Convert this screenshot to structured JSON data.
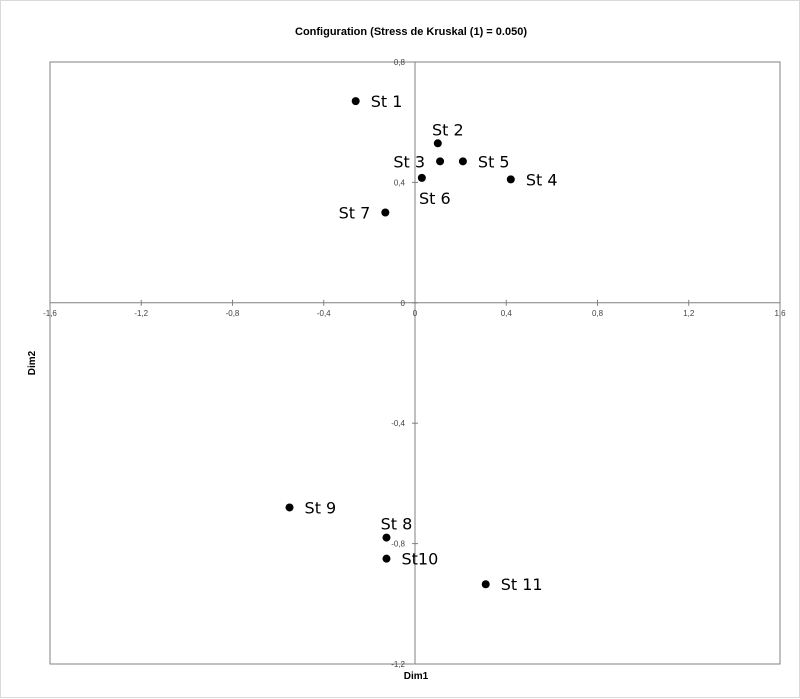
{
  "chart_data": {
    "type": "scatter",
    "title": "Configuration (Stress de Kruskal (1) = 0.050)",
    "xlabel": "Dim1",
    "ylabel": "Dim2",
    "xlim": [
      -1.6,
      1.6
    ],
    "ylim": [
      -1.2,
      0.8
    ],
    "x_ticks": [
      -1.6,
      -1.2,
      -0.8,
      -0.4,
      0,
      0.4,
      0.8,
      1.2,
      1.6
    ],
    "x_tick_labels": [
      "-1,6",
      "-1,2",
      "-0,8",
      "-0,4",
      "0",
      "0,4",
      "0,8",
      "1,2",
      "1,6"
    ],
    "y_ticks": [
      0.8,
      0.4,
      0,
      -0.4,
      -0.8,
      -1.2
    ],
    "y_tick_labels": [
      "0,8",
      "0,4",
      "0",
      "-0,4",
      "-0,8",
      "-1,2"
    ],
    "grid": false,
    "legend": "none",
    "colors": {
      "point": "#000000",
      "axis": "#808080",
      "frame": "#808080"
    },
    "points": [
      {
        "label": "St 1",
        "x": -0.26,
        "y": 0.67,
        "label_pos": "right"
      },
      {
        "label": "St 2",
        "x": 0.1,
        "y": 0.53,
        "label_pos": "above"
      },
      {
        "label": "St 3",
        "x": 0.11,
        "y": 0.47,
        "label_pos": "left"
      },
      {
        "label": "St 5",
        "x": 0.21,
        "y": 0.47,
        "label_pos": "right"
      },
      {
        "label": "St 6",
        "x": 0.03,
        "y": 0.415,
        "label_pos": "below"
      },
      {
        "label": "St 4",
        "x": 0.42,
        "y": 0.41,
        "label_pos": "right"
      },
      {
        "label": "St 7",
        "x": -0.13,
        "y": 0.3,
        "label_pos": "left"
      },
      {
        "label": "St 9",
        "x": -0.55,
        "y": -0.68,
        "label_pos": "right"
      },
      {
        "label": "St 8",
        "x": -0.125,
        "y": -0.78,
        "label_pos": "above"
      },
      {
        "label": "St10",
        "x": -0.125,
        "y": -0.85,
        "label_pos": "right"
      },
      {
        "label": "St 11",
        "x": 0.31,
        "y": -0.935,
        "label_pos": "right"
      }
    ]
  }
}
